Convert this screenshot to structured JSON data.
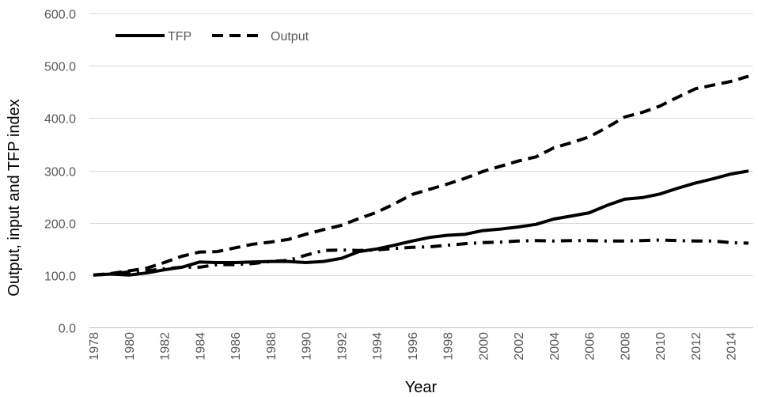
{
  "chart_data": {
    "type": "line",
    "title": "",
    "xlabel": "Year",
    "ylabel": "Output, input and TFP index",
    "ylim": [
      0,
      600
    ],
    "y_ticks": [
      "0.0",
      "100.0",
      "200.0",
      "300.0",
      "400.0",
      "500.0",
      "600.0"
    ],
    "x_ticks": [
      "1978",
      "1980",
      "1982",
      "1984",
      "1986",
      "1988",
      "1990",
      "1992",
      "1994",
      "1996",
      "1998",
      "2000",
      "2002",
      "2004",
      "2006",
      "2008",
      "2010",
      "2012",
      "2014"
    ],
    "grid": true,
    "legend_position": "top-left",
    "x": [
      1978,
      1979,
      1980,
      1981,
      1982,
      1983,
      1984,
      1985,
      1986,
      1987,
      1988,
      1989,
      1990,
      1991,
      1992,
      1993,
      1994,
      1995,
      1996,
      1997,
      1998,
      1999,
      2000,
      2001,
      2002,
      2003,
      2004,
      2005,
      2006,
      2007,
      2008,
      2009,
      2010,
      2011,
      2012,
      2013,
      2014,
      2015
    ],
    "series": [
      {
        "name": "TFP",
        "style": "solid",
        "color": "#000000",
        "values": [
          100,
          102,
          100,
          104,
          110,
          115,
          125,
          124,
          124,
          125,
          126,
          126,
          124,
          126,
          132,
          145,
          150,
          157,
          165,
          172,
          176,
          178,
          185,
          188,
          192,
          197,
          207,
          213,
          219,
          233,
          245,
          248,
          255,
          266,
          276,
          284,
          293,
          299
        ]
      },
      {
        "name": "Output",
        "style": "dashed",
        "color": "#000000",
        "values": [
          100,
          103,
          108,
          113,
          124,
          136,
          144,
          145,
          152,
          159,
          163,
          168,
          178,
          187,
          195,
          208,
          220,
          236,
          254,
          264,
          274,
          285,
          298,
          308,
          318,
          326,
          343,
          353,
          364,
          382,
          402,
          411,
          423,
          440,
          456,
          463,
          470,
          480
        ]
      },
      {
        "name": "",
        "style": "dash-dot",
        "color": "#000000",
        "values": [
          100,
          102,
          106,
          108,
          112,
          115,
          115,
          120,
          120,
          122,
          126,
          128,
          138,
          147,
          148,
          147,
          148,
          151,
          153,
          154,
          157,
          160,
          162,
          163,
          165,
          166,
          165,
          166,
          166,
          165,
          165,
          166,
          167,
          166,
          165,
          165,
          162,
          161
        ]
      }
    ]
  }
}
